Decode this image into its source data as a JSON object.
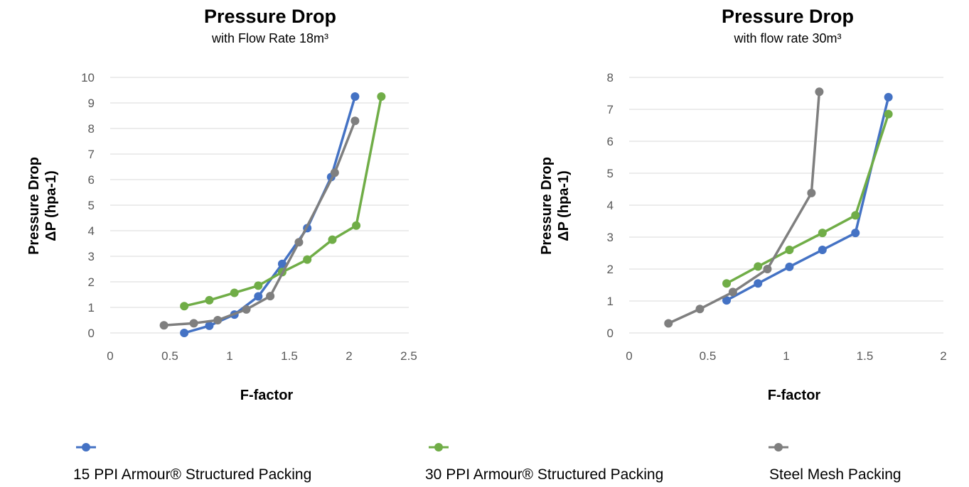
{
  "colors": {
    "blue": "#4472c4",
    "green": "#70ad47",
    "gray": "#7f7f7f",
    "grid": "#d9d9d9"
  },
  "legend": [
    {
      "label": "15 PPI Armour® Structured Packing",
      "color": "#4472c4",
      "marker": "circle"
    },
    {
      "label": "30 PPI Armour® Structured Packing",
      "color": "#70ad47",
      "marker": "circle"
    },
    {
      "label": "Steel Mesh Packing",
      "color": "#7f7f7f",
      "marker": "circle"
    }
  ],
  "chart_data": [
    {
      "type": "line",
      "title": "Pressure Drop",
      "subtitle": "with Flow Rate 18m³",
      "xlabel": "F-factor",
      "ylabel_lines": [
        "Pressure Drop",
        "ΔP (hpa-1)"
      ],
      "xlim": [
        0,
        2.5
      ],
      "ylim": [
        0,
        10
      ],
      "xticks": [
        0,
        0.5,
        1,
        1.5,
        2,
        2.5
      ],
      "xtick_labels": [
        "0",
        "0.5",
        "1",
        "1.5",
        "2",
        "2.5"
      ],
      "yticks": [
        0,
        1,
        2,
        3,
        4,
        5,
        6,
        7,
        8,
        9,
        10
      ],
      "ytick_labels": [
        "0",
        "1",
        "2",
        "3",
        "4",
        "5",
        "6",
        "7",
        "8",
        "9",
        "10"
      ],
      "grid": true,
      "series": [
        {
          "name": "15 PPI Armour® Structured Packing",
          "color": "#4472c4",
          "x": [
            0.62,
            0.83,
            1.04,
            1.24,
            1.44,
            1.65,
            1.85,
            2.05
          ],
          "y": [
            0.0,
            0.28,
            0.72,
            1.43,
            2.7,
            4.1,
            6.1,
            9.25
          ]
        },
        {
          "name": "30 PPI Armour® Structured Packing",
          "color": "#70ad47",
          "x": [
            0.62,
            0.83,
            1.04,
            1.24,
            1.44,
            1.65,
            1.86,
            2.06,
            2.27
          ],
          "y": [
            1.05,
            1.28,
            1.57,
            1.85,
            2.38,
            2.87,
            3.65,
            4.2,
            9.25
          ]
        },
        {
          "name": "Steel Mesh Packing",
          "color": "#7f7f7f",
          "x": [
            0.45,
            0.7,
            0.9,
            1.14,
            1.34,
            1.58,
            1.88,
            2.05
          ],
          "y": [
            0.3,
            0.38,
            0.5,
            0.92,
            1.44,
            3.55,
            6.27,
            8.3
          ]
        }
      ]
    },
    {
      "type": "line",
      "title": "Pressure Drop",
      "subtitle": "with flow rate 30m³",
      "xlabel": "F-factor",
      "ylabel_lines": [
        "Pressure Drop",
        "ΔP (hpa-1)"
      ],
      "xlim": [
        0,
        2
      ],
      "ylim": [
        0,
        8
      ],
      "xticks": [
        0,
        0.5,
        1,
        1.5,
        2
      ],
      "xtick_labels": [
        "0",
        "0.5",
        "1",
        "1.5",
        "2"
      ],
      "yticks": [
        0,
        1,
        2,
        3,
        4,
        5,
        6,
        7,
        8
      ],
      "ytick_labels": [
        "0",
        "1",
        "2",
        "3",
        "4",
        "5",
        "6",
        "7",
        "8"
      ],
      "grid": true,
      "series": [
        {
          "name": "15 PPI Armour® Structured Packing",
          "color": "#4472c4",
          "x": [
            0.62,
            0.82,
            1.02,
            1.23,
            1.44,
            1.65
          ],
          "y": [
            1.02,
            1.55,
            2.07,
            2.6,
            3.13,
            7.38
          ]
        },
        {
          "name": "30 PPI Armour® Structured Packing",
          "color": "#70ad47",
          "x": [
            0.62,
            0.82,
            1.02,
            1.23,
            1.44,
            1.65
          ],
          "y": [
            1.55,
            2.08,
            2.6,
            3.13,
            3.68,
            6.85
          ]
        },
        {
          "name": "Steel Mesh Packing",
          "color": "#7f7f7f",
          "x": [
            0.25,
            0.45,
            0.66,
            0.88,
            1.16,
            1.21
          ],
          "y": [
            0.3,
            0.75,
            1.28,
            2.0,
            4.38,
            7.55
          ]
        }
      ]
    }
  ]
}
